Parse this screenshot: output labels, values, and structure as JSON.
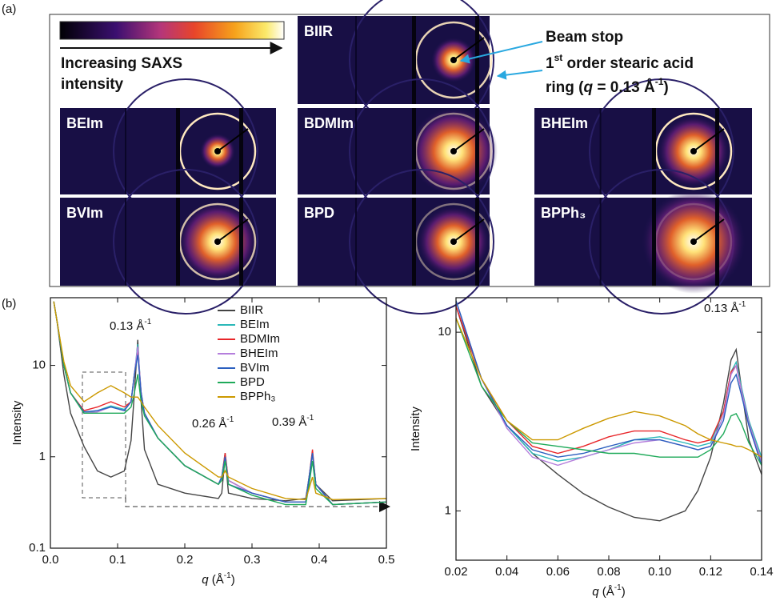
{
  "panel_a": {
    "label": "(a)",
    "colorbar_caption": [
      "Increasing SAXS",
      "intensity"
    ],
    "images": [
      "BIIR",
      "BEIm",
      "BDMIm",
      "BHEIm",
      "BVIm",
      "BPD",
      "BPPh₃"
    ],
    "beam_stop": "Beam stop",
    "ring_note": {
      "line1": [
        "1",
        "st",
        " order stearic acid"
      ],
      "line2": [
        "ring (",
        "q",
        " = 0.13 Å",
        "-1",
        ")"
      ]
    }
  },
  "panel_b": {
    "label": "(b)"
  },
  "chart_data": [
    {
      "type": "line",
      "log_y": true,
      "ylabel": "Intensity",
      "xlabel": [
        "q",
        " (Å",
        "-1",
        ")"
      ],
      "xlim": [
        0,
        0.5
      ],
      "ylim": [
        0.1,
        55
      ],
      "xticks": [
        {
          "value": 0,
          "label": "0.0"
        },
        0.1,
        0.2,
        0.3,
        0.4,
        0.5
      ],
      "yticks": [
        0.1,
        1,
        10
      ],
      "annotations": [
        [
          "0.13 Å",
          "-1"
        ],
        [
          "0.26 Å",
          "-1"
        ],
        [
          "0.39 Å",
          "-1"
        ]
      ],
      "legend": "top-center",
      "x": [
        0.005,
        0.01,
        0.02,
        0.03,
        0.05,
        0.07,
        0.09,
        0.11,
        0.12,
        0.125,
        0.13,
        0.135,
        0.14,
        0.16,
        0.2,
        0.25,
        0.255,
        0.26,
        0.265,
        0.3,
        0.35,
        0.38,
        0.385,
        0.39,
        0.395,
        0.42,
        0.5
      ],
      "series": [
        {
          "name": "BIIR",
          "color": "#444444",
          "values": [
            50,
            30,
            8,
            3,
            1.3,
            0.7,
            0.6,
            0.7,
            1.5,
            5,
            19,
            4,
            1.2,
            0.5,
            0.4,
            0.35,
            0.4,
            1.0,
            0.4,
            0.35,
            0.33,
            0.35,
            0.6,
            1.1,
            0.5,
            0.33,
            0.35
          ]
        },
        {
          "name": "BEIm",
          "color": "#2bb8b8",
          "values": [
            50,
            30,
            10,
            5,
            3,
            3.2,
            3.6,
            3.3,
            4,
            8,
            17,
            5,
            3,
            1.6,
            0.8,
            0.5,
            0.6,
            1.1,
            0.55,
            0.4,
            0.32,
            0.32,
            0.6,
            1.1,
            0.5,
            0.3,
            0.32
          ]
        },
        {
          "name": "BDMIm",
          "color": "#e8262a",
          "values": [
            50,
            30,
            10,
            5,
            3.2,
            3.5,
            4,
            3.5,
            4,
            8,
            15,
            5,
            3,
            1.6,
            0.8,
            0.5,
            0.6,
            1.1,
            0.55,
            0.4,
            0.32,
            0.32,
            0.6,
            1.2,
            0.5,
            0.3,
            0.32
          ]
        },
        {
          "name": "BHEIm",
          "color": "#b57edc",
          "values": [
            50,
            30,
            10,
            5,
            3,
            3.1,
            3.5,
            3.2,
            4,
            8,
            16,
            5,
            3,
            1.6,
            0.8,
            0.5,
            0.6,
            1.0,
            0.55,
            0.4,
            0.32,
            0.32,
            0.6,
            1.1,
            0.5,
            0.3,
            0.32
          ]
        },
        {
          "name": "BVIm",
          "color": "#2b5fbf",
          "values": [
            50,
            30,
            10,
            5,
            3.1,
            3.2,
            3.5,
            3.2,
            4,
            8,
            13,
            5,
            3,
            1.6,
            0.8,
            0.5,
            0.6,
            1.0,
            0.5,
            0.4,
            0.32,
            0.32,
            0.6,
            1.1,
            0.5,
            0.3,
            0.32
          ]
        },
        {
          "name": "BPD",
          "color": "#1faa5a",
          "values": [
            50,
            30,
            10,
            5,
            3,
            3,
            3,
            3,
            3.5,
            5,
            8,
            4,
            2.8,
            1.6,
            0.8,
            0.5,
            0.55,
            0.9,
            0.5,
            0.38,
            0.3,
            0.3,
            0.5,
            0.9,
            0.45,
            0.3,
            0.32
          ]
        },
        {
          "name": "BPPh₃",
          "color": "#cc9900",
          "values": [
            50,
            30,
            11,
            6,
            4,
            5,
            6,
            5,
            4.5,
            4.5,
            4.5,
            4,
            3.5,
            2.2,
            1.1,
            0.6,
            0.6,
            0.7,
            0.6,
            0.45,
            0.35,
            0.34,
            0.45,
            0.6,
            0.4,
            0.34,
            0.35
          ]
        }
      ]
    },
    {
      "type": "line",
      "log_y": true,
      "ylabel": "Intensity",
      "xlabel": [
        "q",
        " (Å",
        "-1",
        ")"
      ],
      "xlim": [
        0.02,
        0.14
      ],
      "ylim": [
        0.53,
        15.6
      ],
      "xticks": [
        0.02,
        0.04,
        0.06,
        0.08,
        {
          "value": 0.1,
          "label": "0.10"
        },
        0.12,
        0.14
      ],
      "yticks": [
        1,
        10
      ],
      "annotations": [
        [
          "0.13 Å",
          "-1"
        ]
      ],
      "x": [
        0.02,
        0.03,
        0.04,
        0.05,
        0.06,
        0.07,
        0.08,
        0.09,
        0.1,
        0.11,
        0.115,
        0.12,
        0.125,
        0.128,
        0.13,
        0.132,
        0.135,
        0.14
      ],
      "series": [
        {
          "name": "BIIR",
          "color": "#444444",
          "values": [
            14,
            5,
            3.0,
            2.1,
            1.6,
            1.25,
            1.05,
            0.92,
            0.88,
            1.0,
            1.3,
            2.0,
            4,
            7,
            8,
            5,
            2.5,
            1.6
          ]
        },
        {
          "name": "BEIm",
          "color": "#2bb8b8",
          "values": [
            15,
            5.5,
            3,
            2.1,
            1.9,
            2.0,
            2.2,
            2.5,
            2.6,
            2.4,
            2.3,
            2.4,
            3.6,
            6,
            6.8,
            5,
            3.2,
            2.0
          ]
        },
        {
          "name": "BDMIm",
          "color": "#e8262a",
          "values": [
            14,
            5.5,
            3.2,
            2.3,
            2.1,
            2.3,
            2.6,
            2.8,
            2.8,
            2.5,
            2.4,
            2.5,
            3.6,
            6,
            6.5,
            4.8,
            3.1,
            1.9
          ]
        },
        {
          "name": "BHEIm",
          "color": "#b57edc",
          "values": [
            15,
            5.5,
            2.9,
            2.0,
            1.8,
            2.0,
            2.2,
            2.4,
            2.5,
            2.3,
            2.2,
            2.3,
            3.4,
            5.8,
            6.5,
            4.8,
            3.1,
            1.9
          ]
        },
        {
          "name": "BVIm",
          "color": "#2b5fbf",
          "values": [
            15,
            5.5,
            3.0,
            2.2,
            2.0,
            2.1,
            2.3,
            2.5,
            2.5,
            2.3,
            2.2,
            2.3,
            3.2,
            5.2,
            5.8,
            4.5,
            3.0,
            1.8
          ]
        },
        {
          "name": "BPD",
          "color": "#1faa5a",
          "values": [
            12,
            5,
            3.2,
            2.4,
            2.3,
            2.2,
            2.1,
            2.1,
            2.0,
            2.0,
            2.0,
            2.2,
            2.7,
            3.4,
            3.5,
            3.1,
            2.4,
            1.8
          ]
        },
        {
          "name": "BPPh₃",
          "color": "#cc9900",
          "values": [
            12,
            5.5,
            3.2,
            2.5,
            2.5,
            2.9,
            3.3,
            3.6,
            3.4,
            3.0,
            2.7,
            2.5,
            2.4,
            2.35,
            2.3,
            2.3,
            2.2,
            2.0
          ]
        }
      ]
    }
  ]
}
